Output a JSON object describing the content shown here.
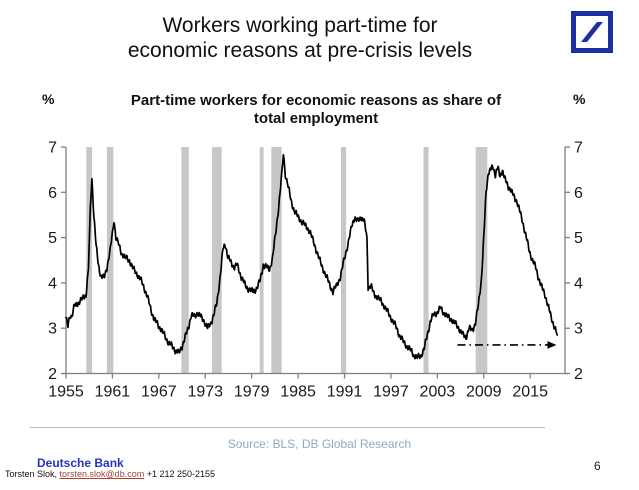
{
  "slide": {
    "title_line1": "Workers working part-time for",
    "title_line2": "economic reasons at pre-crisis levels",
    "source": "Source: BLS, DB Global Research",
    "page_number": "6",
    "footer": {
      "brand": "Deutsche Bank",
      "contact_prefix": "Torsten Slok, ",
      "email": "torsten.slok@db.com",
      "phone": " +1 212 250-2155"
    },
    "logo_icon": "deutsche-bank-slash-logo"
  },
  "chart": {
    "subtitle_line1": "Part-time workers for economic reasons as share of",
    "subtitle_line2": "total employment",
    "pct_left": "%",
    "pct_right": "%"
  },
  "colors": {
    "line": "#000000",
    "recession_band": "#c7c7c7",
    "axis": "#7f7f7f",
    "tick_text": "#1a1a1a",
    "source_text": "#8ea9c6",
    "db_blue": "#1c2fa3",
    "link_red": "#a4423a",
    "arrow": "#000000"
  },
  "chart_data": {
    "type": "line",
    "title": "Part-time workers for economic reasons as share of total employment",
    "ylabel": "%",
    "ylim": [
      2,
      7
    ],
    "y_ticks": [
      2,
      3,
      4,
      5,
      6,
      7
    ],
    "x_ticks": [
      1955,
      1961,
      1967,
      1973,
      1979,
      1985,
      1991,
      1997,
      2003,
      2009,
      2015
    ],
    "x_range": [
      1955,
      2019.5
    ],
    "grid": false,
    "legend": "none",
    "recession_bands": [
      [
        1957.62,
        1958.37
      ],
      [
        1960.29,
        1961.12
      ],
      [
        1969.92,
        1970.87
      ],
      [
        1973.87,
        1975.12
      ],
      [
        1980.04,
        1980.54
      ],
      [
        1981.54,
        1982.87
      ],
      [
        1990.54,
        1991.21
      ],
      [
        2001.21,
        2001.87
      ],
      [
        2007.96,
        2009.46
      ]
    ],
    "annotation_arrow": {
      "style": "dash-dot",
      "y": 2.63,
      "x_start": 2005.6,
      "x_end": 2018.4,
      "meaning": "current level back at pre-crisis level"
    },
    "series": [
      {
        "name": "Part-time workers for economic reasons, % of total employment",
        "points": [
          [
            1955.0,
            3.2
          ],
          [
            1955.25,
            3.05
          ],
          [
            1955.5,
            3.3
          ],
          [
            1955.75,
            3.25
          ],
          [
            1956.1,
            3.5
          ],
          [
            1956.5,
            3.55
          ],
          [
            1956.9,
            3.6
          ],
          [
            1957.3,
            3.7
          ],
          [
            1957.6,
            3.75
          ],
          [
            1957.9,
            4.3
          ],
          [
            1958.15,
            5.7
          ],
          [
            1958.35,
            6.3
          ],
          [
            1958.6,
            5.5
          ],
          [
            1958.9,
            4.8
          ],
          [
            1959.2,
            4.4
          ],
          [
            1959.5,
            4.15
          ],
          [
            1959.9,
            4.1
          ],
          [
            1960.3,
            4.35
          ],
          [
            1960.7,
            4.7
          ],
          [
            1961.0,
            5.1
          ],
          [
            1961.2,
            5.4
          ],
          [
            1961.45,
            5.0
          ],
          [
            1961.8,
            4.85
          ],
          [
            1962.2,
            4.65
          ],
          [
            1962.7,
            4.55
          ],
          [
            1963.2,
            4.5
          ],
          [
            1963.7,
            4.3
          ],
          [
            1964.2,
            4.2
          ],
          [
            1964.7,
            4.05
          ],
          [
            1965.1,
            3.9
          ],
          [
            1965.5,
            3.7
          ],
          [
            1966.0,
            3.4
          ],
          [
            1966.4,
            3.2
          ],
          [
            1966.8,
            3.1
          ],
          [
            1967.2,
            3.0
          ],
          [
            1967.7,
            2.85
          ],
          [
            1968.2,
            2.7
          ],
          [
            1968.7,
            2.6
          ],
          [
            1969.2,
            2.5
          ],
          [
            1969.6,
            2.45
          ],
          [
            1970.0,
            2.6
          ],
          [
            1970.4,
            2.8
          ],
          [
            1970.8,
            3.0
          ],
          [
            1971.2,
            3.3
          ],
          [
            1971.6,
            3.25
          ],
          [
            1972.0,
            3.35
          ],
          [
            1972.4,
            3.25
          ],
          [
            1972.9,
            3.15
          ],
          [
            1973.3,
            3.0
          ],
          [
            1973.7,
            3.1
          ],
          [
            1974.1,
            3.3
          ],
          [
            1974.5,
            3.55
          ],
          [
            1974.9,
            4.1
          ],
          [
            1975.3,
            4.75
          ],
          [
            1975.6,
            4.85
          ],
          [
            1975.9,
            4.6
          ],
          [
            1976.3,
            4.45
          ],
          [
            1976.7,
            4.35
          ],
          [
            1977.1,
            4.4
          ],
          [
            1977.5,
            4.2
          ],
          [
            1977.9,
            4.05
          ],
          [
            1978.3,
            3.9
          ],
          [
            1978.8,
            3.85
          ],
          [
            1979.2,
            3.8
          ],
          [
            1979.7,
            3.9
          ],
          [
            1980.1,
            4.05
          ],
          [
            1980.5,
            4.4
          ],
          [
            1980.9,
            4.35
          ],
          [
            1981.3,
            4.3
          ],
          [
            1981.7,
            4.55
          ],
          [
            1982.1,
            5.1
          ],
          [
            1982.5,
            5.7
          ],
          [
            1982.9,
            6.4
          ],
          [
            1983.1,
            6.85
          ],
          [
            1983.35,
            6.4
          ],
          [
            1983.7,
            6.15
          ],
          [
            1984.1,
            5.8
          ],
          [
            1984.5,
            5.6
          ],
          [
            1985.0,
            5.45
          ],
          [
            1985.5,
            5.35
          ],
          [
            1986.0,
            5.25
          ],
          [
            1986.5,
            5.15
          ],
          [
            1987.0,
            4.9
          ],
          [
            1987.5,
            4.65
          ],
          [
            1988.0,
            4.4
          ],
          [
            1988.5,
            4.2
          ],
          [
            1989.0,
            4.0
          ],
          [
            1989.5,
            3.8
          ],
          [
            1990.0,
            3.95
          ],
          [
            1990.5,
            4.15
          ],
          [
            1991.0,
            4.55
          ],
          [
            1991.5,
            4.9
          ],
          [
            1992.0,
            5.3
          ],
          [
            1992.3,
            5.45
          ],
          [
            1992.7,
            5.35
          ],
          [
            1993.1,
            5.45
          ],
          [
            1993.5,
            5.4
          ],
          [
            1993.9,
            5.0
          ],
          [
            1994.05,
            3.9
          ],
          [
            1994.4,
            3.95
          ],
          [
            1994.8,
            3.75
          ],
          [
            1995.2,
            3.7
          ],
          [
            1995.7,
            3.6
          ],
          [
            1996.1,
            3.5
          ],
          [
            1996.6,
            3.35
          ],
          [
            1997.1,
            3.2
          ],
          [
            1997.6,
            3.05
          ],
          [
            1998.1,
            2.85
          ],
          [
            1998.6,
            2.7
          ],
          [
            1999.1,
            2.6
          ],
          [
            1999.6,
            2.5
          ],
          [
            2000.0,
            2.4
          ],
          [
            2000.4,
            2.35
          ],
          [
            2000.9,
            2.4
          ],
          [
            2001.3,
            2.55
          ],
          [
            2001.7,
            2.85
          ],
          [
            2002.1,
            3.15
          ],
          [
            2002.5,
            3.3
          ],
          [
            2003.0,
            3.35
          ],
          [
            2003.4,
            3.45
          ],
          [
            2003.8,
            3.35
          ],
          [
            2004.3,
            3.25
          ],
          [
            2004.8,
            3.2
          ],
          [
            2005.3,
            3.1
          ],
          [
            2005.8,
            3.0
          ],
          [
            2006.3,
            2.85
          ],
          [
            2006.7,
            2.8
          ],
          [
            2007.1,
            3.0
          ],
          [
            2007.5,
            2.95
          ],
          [
            2007.9,
            3.1
          ],
          [
            2008.3,
            3.5
          ],
          [
            2008.7,
            4.1
          ],
          [
            2009.0,
            5.0
          ],
          [
            2009.3,
            6.0
          ],
          [
            2009.6,
            6.45
          ],
          [
            2009.9,
            6.5
          ],
          [
            2010.2,
            6.55
          ],
          [
            2010.5,
            6.4
          ],
          [
            2010.8,
            6.55
          ],
          [
            2011.1,
            6.35
          ],
          [
            2011.4,
            6.5
          ],
          [
            2011.7,
            6.3
          ],
          [
            2012.1,
            6.15
          ],
          [
            2012.5,
            6.05
          ],
          [
            2012.9,
            5.9
          ],
          [
            2013.3,
            5.8
          ],
          [
            2013.7,
            5.55
          ],
          [
            2014.1,
            5.3
          ],
          [
            2014.5,
            5.0
          ],
          [
            2014.9,
            4.7
          ],
          [
            2015.3,
            4.5
          ],
          [
            2015.7,
            4.35
          ],
          [
            2016.1,
            4.1
          ],
          [
            2016.5,
            3.9
          ],
          [
            2016.9,
            3.75
          ],
          [
            2017.3,
            3.5
          ],
          [
            2017.7,
            3.25
          ],
          [
            2018.1,
            3.05
          ],
          [
            2018.5,
            2.85
          ]
        ]
      }
    ]
  }
}
